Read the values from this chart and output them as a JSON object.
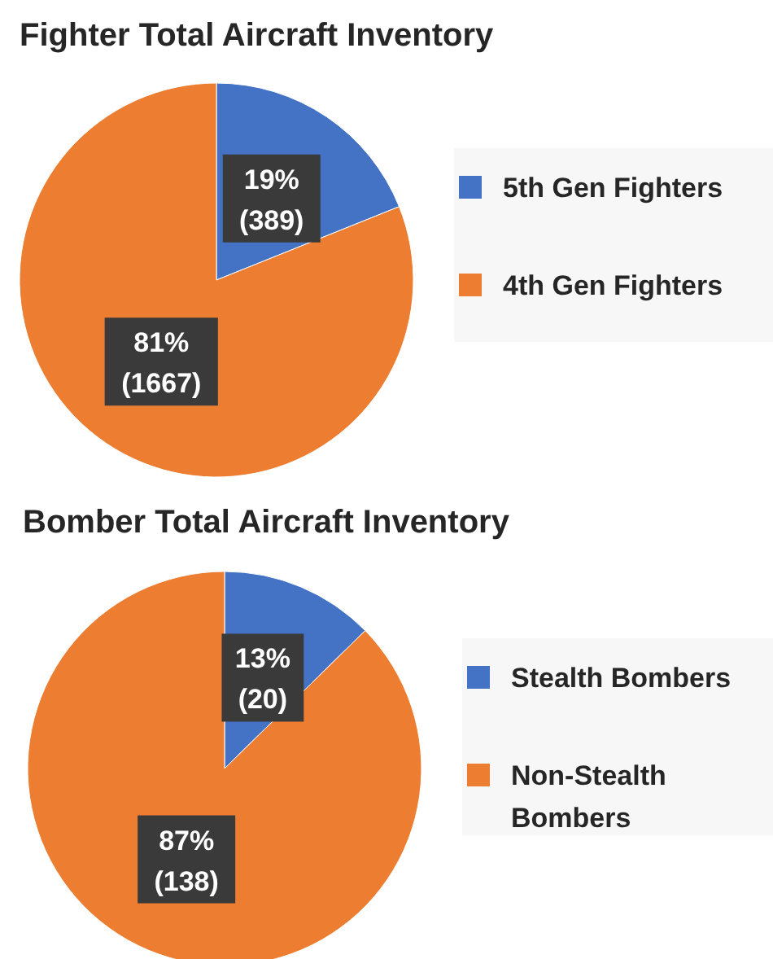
{
  "chart_data": [
    {
      "type": "pie",
      "title": "Fighter Total Aircraft Inventory",
      "categories": [
        "5th Gen Fighters",
        "4th Gen Fighters"
      ],
      "values": [
        389,
        1667
      ],
      "colors": [
        "#4472c4",
        "#ed7d31"
      ],
      "value_labels": [
        "19%\n(389)",
        "81%\n(1667)"
      ],
      "legend": "right"
    },
    {
      "type": "pie",
      "title": "Bomber Total Aircraft Inventory",
      "categories": [
        "Stealth Bombers",
        "Non-Stealth Bombers"
      ],
      "values": [
        20,
        138
      ],
      "colors": [
        "#4472c4",
        "#ed7d31"
      ],
      "value_labels": [
        "13%\n(20)",
        "87%\n(138)"
      ],
      "legend": "right"
    }
  ]
}
